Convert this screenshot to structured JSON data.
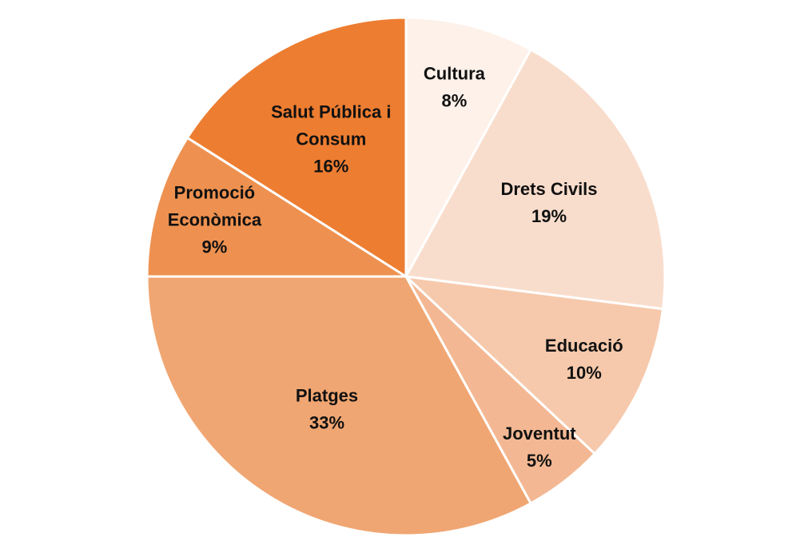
{
  "chart_data": {
    "type": "pie",
    "title": "",
    "start_angle_deg": 0,
    "direction": "clockwise",
    "legend": "none",
    "slices": [
      {
        "name": "Cultura",
        "label_lines": [
          "Cultura"
        ],
        "value": 8,
        "value_label": "8%",
        "color": "#FDF1E9"
      },
      {
        "name": "Drets Civils",
        "label_lines": [
          "Drets Civils"
        ],
        "value": 19,
        "value_label": "19%",
        "color": "#F9DDCC"
      },
      {
        "name": "Educació",
        "label_lines": [
          "Educació"
        ],
        "value": 10,
        "value_label": "10%",
        "color": "#F6C9AC"
      },
      {
        "name": "Joventut",
        "label_lines": [
          "Joventut"
        ],
        "value": 5,
        "value_label": "5%",
        "color": "#F3B893"
      },
      {
        "name": "Platges",
        "label_lines": [
          "Platges"
        ],
        "value": 33,
        "value_label": "33%",
        "color": "#F0A672"
      },
      {
        "name": "Promoció Econòmica",
        "label_lines": [
          "Promoció",
          "Econòmica"
        ],
        "value": 9,
        "value_label": "9%",
        "color": "#EE9150"
      },
      {
        "name": "Salut Pública i Consum",
        "label_lines": [
          "Salut Pública i",
          "Consum"
        ],
        "value": 16,
        "value_label": "16%",
        "color": "#ED7D31"
      }
    ]
  }
}
